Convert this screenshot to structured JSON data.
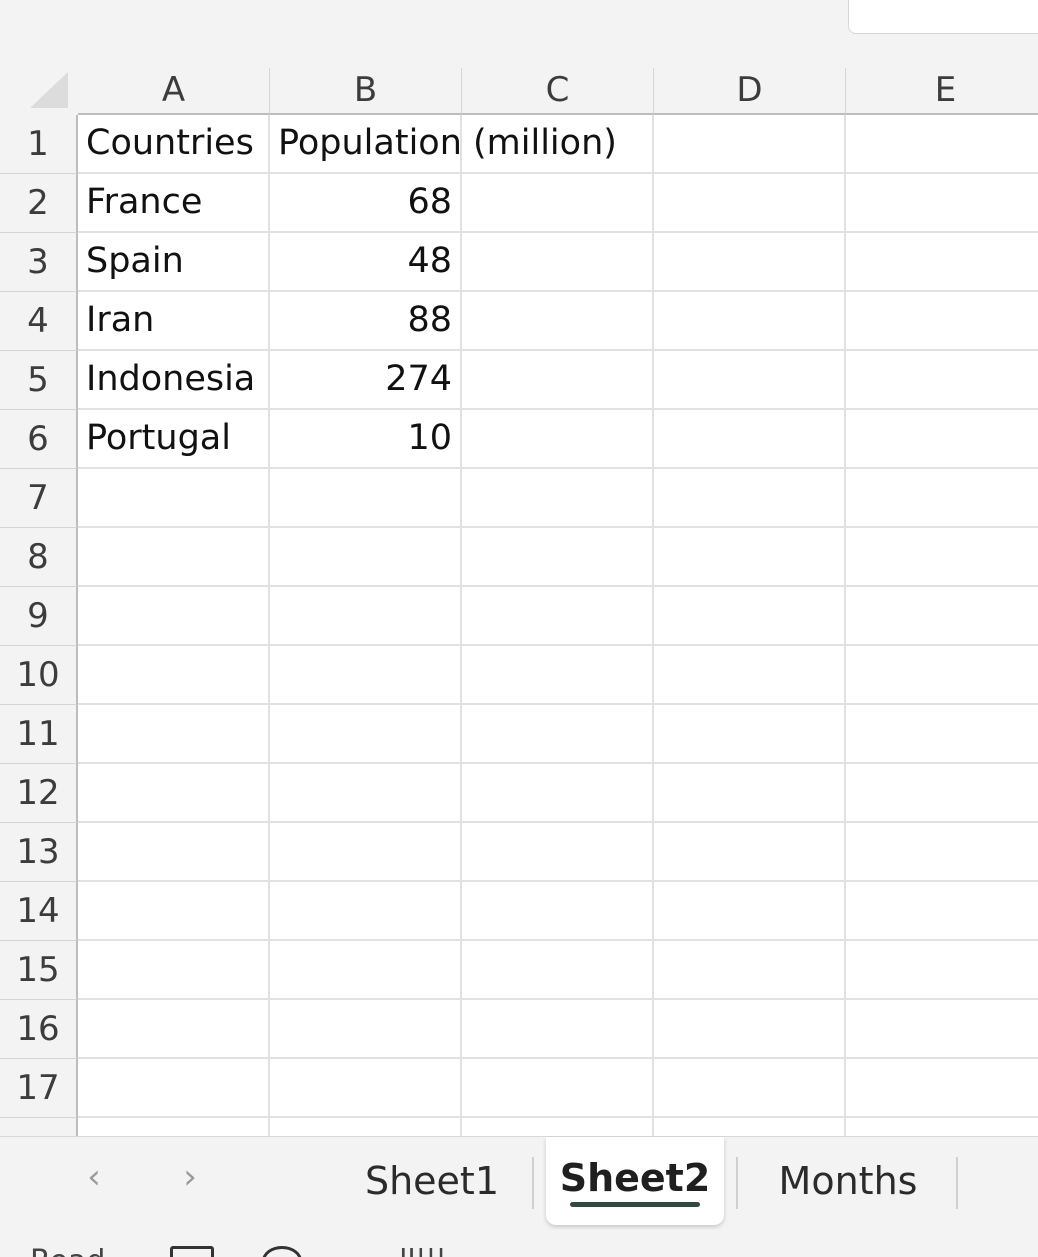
{
  "columns": [
    "A",
    "B",
    "C",
    "D",
    "E"
  ],
  "rows": [
    "1",
    "2",
    "3",
    "4",
    "5",
    "6",
    "7",
    "8",
    "9",
    "10",
    "11",
    "12",
    "13",
    "14",
    "15",
    "16",
    "17"
  ],
  "cells": {
    "A1": "Countries",
    "B1": "Population (million)",
    "A2": "France",
    "B2": "68",
    "A3": "Spain",
    "B3": "48",
    "A4": "Iran",
    "B4": "88",
    "A5": "Indonesia",
    "B5": "274",
    "A6": "Portugal",
    "B6": "10"
  },
  "sheet_tabs": [
    {
      "label": "Sheet1",
      "active": false
    },
    {
      "label": "Sheet2",
      "active": true
    },
    {
      "label": "Months",
      "active": false
    }
  ],
  "nav": {
    "prev_icon": "chevron-left-icon",
    "next_icon": "chevron-right-icon",
    "prev_glyph": "‹",
    "next_glyph": "›"
  },
  "status": {
    "text": "Read",
    "trailing_text": "..ll|||...."
  },
  "colors": {
    "active_tab_underline": "#2d4a3e",
    "header_bg": "#f3f3f3",
    "grid_line": "#e1e1e1"
  }
}
